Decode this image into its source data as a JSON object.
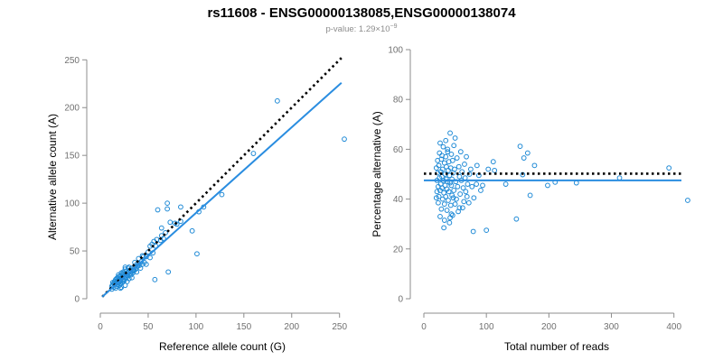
{
  "title": "rs11608 - ENSG00000138085,ENSG00000138074",
  "subtitle": {
    "prefix": "p-value: 1.29×10",
    "exponent": "−9"
  },
  "colors": {
    "points": "#1f8ad6",
    "fit_line": "#2a8de0",
    "reference_line": "#000000",
    "axis": "#8c8c8c"
  },
  "chart_data": [
    {
      "type": "scatter",
      "xlabel": "Reference allele count (G)",
      "ylabel": "Alternative allele count (A)",
      "xlim": [
        0,
        255
      ],
      "ylim": [
        0,
        255
      ],
      "xticks": [
        0,
        50,
        100,
        150,
        200,
        250
      ],
      "yticks": [
        0,
        50,
        100,
        150,
        200,
        250
      ],
      "grid": false,
      "fit_line": {
        "style": "solid",
        "from": [
          2,
          2
        ],
        "to": [
          252,
          226
        ]
      },
      "reference_line": {
        "style": "dotted",
        "from": [
          2,
          2
        ],
        "to": [
          252,
          252
        ]
      },
      "points": [
        [
          255,
          167
        ],
        [
          185,
          207
        ],
        [
          160,
          152
        ],
        [
          127,
          109
        ],
        [
          108,
          96
        ],
        [
          103,
          91
        ],
        [
          101,
          47
        ],
        [
          96,
          71
        ],
        [
          84,
          96
        ],
        [
          84,
          81
        ],
        [
          80,
          78
        ],
        [
          78,
          79
        ],
        [
          73,
          80
        ],
        [
          70,
          100
        ],
        [
          70,
          94
        ],
        [
          71,
          28
        ],
        [
          68,
          69
        ],
        [
          66,
          63
        ],
        [
          64,
          66
        ],
        [
          64,
          74
        ],
        [
          63,
          61
        ],
        [
          60,
          93
        ],
        [
          59,
          62
        ],
        [
          57,
          20
        ],
        [
          58,
          55
        ],
        [
          56,
          60
        ],
        [
          55,
          48
        ],
        [
          54,
          57
        ],
        [
          52,
          43
        ],
        [
          52,
          55
        ],
        [
          50,
          49
        ],
        [
          48,
          44
        ],
        [
          48,
          36
        ],
        [
          46,
          38
        ],
        [
          45,
          44
        ],
        [
          44,
          45
        ],
        [
          43,
          39
        ],
        [
          42,
          32
        ],
        [
          41,
          35
        ],
        [
          40,
          37
        ],
        [
          40,
          42
        ],
        [
          39,
          34
        ],
        [
          38,
          36
        ],
        [
          38,
          28
        ],
        [
          37,
          31
        ],
        [
          36,
          33
        ],
        [
          35,
          30
        ],
        [
          35,
          29
        ],
        [
          34,
          27
        ],
        [
          33,
          32
        ],
        [
          33,
          22
        ],
        [
          32,
          25
        ],
        [
          31,
          30
        ],
        [
          31,
          26
        ],
        [
          30,
          29
        ],
        [
          30,
          21
        ],
        [
          29,
          24
        ],
        [
          29,
          32
        ],
        [
          28,
          27
        ],
        [
          28,
          18
        ],
        [
          27,
          25
        ],
        [
          27,
          22
        ],
        [
          26,
          31
        ],
        [
          26,
          14
        ],
        [
          25,
          19
        ],
        [
          25,
          26
        ],
        [
          25,
          21
        ],
        [
          24,
          20
        ],
        [
          24,
          28
        ],
        [
          23,
          23
        ],
        [
          23,
          17
        ],
        [
          22,
          22
        ],
        [
          22,
          27
        ],
        [
          22,
          12
        ],
        [
          21,
          19
        ],
        [
          21,
          16
        ],
        [
          21,
          24
        ],
        [
          20,
          21
        ],
        [
          20,
          18
        ],
        [
          20,
          14
        ],
        [
          19,
          20
        ],
        [
          19,
          25
        ],
        [
          19,
          17
        ],
        [
          18,
          19
        ],
        [
          18,
          15
        ],
        [
          18,
          22
        ],
        [
          17,
          18
        ],
        [
          17,
          13
        ],
        [
          17,
          21
        ],
        [
          16,
          17
        ],
        [
          16,
          20
        ],
        [
          16,
          11
        ],
        [
          15,
          15
        ],
        [
          15,
          18
        ],
        [
          14,
          16
        ],
        [
          14,
          12
        ],
        [
          13,
          14
        ],
        [
          13,
          17
        ],
        [
          12,
          13
        ],
        [
          12,
          10
        ],
        [
          26,
          33
        ],
        [
          24,
          18
        ],
        [
          23,
          26
        ],
        [
          28,
          24
        ],
        [
          30,
          33
        ],
        [
          32,
          28
        ],
        [
          34,
          30
        ],
        [
          36,
          38
        ],
        [
          19,
          23
        ],
        [
          21,
          11
        ],
        [
          44,
          36
        ]
      ]
    },
    {
      "type": "scatter",
      "xlabel": "Total number of reads",
      "ylabel": "Percentage alternative (A)",
      "xlim": [
        0,
        425
      ],
      "ylim": [
        0,
        100
      ],
      "xticks": [
        0,
        100,
        200,
        300,
        400
      ],
      "yticks": [
        0,
        20,
        40,
        60,
        80,
        100
      ],
      "grid": false,
      "fit_line": {
        "style": "solid",
        "from": [
          0,
          47.5
        ],
        "to": [
          412,
          47.5
        ]
      },
      "reference_line": {
        "style": "dotted",
        "from": [
          0,
          50.2
        ],
        "to": [
          412,
          50.2
        ]
      },
      "points": [
        [
          422,
          39.5
        ],
        [
          392,
          52.5
        ],
        [
          313,
          48.5
        ],
        [
          244,
          46.5
        ],
        [
          210,
          46.8
        ],
        [
          198,
          45.5
        ],
        [
          177,
          53.5
        ],
        [
          170,
          41.5
        ],
        [
          166,
          58.5
        ],
        [
          160,
          56.5
        ],
        [
          158,
          49.8
        ],
        [
          154,
          61.2
        ],
        [
          148,
          32
        ],
        [
          131,
          46
        ],
        [
          113,
          51.5
        ],
        [
          111,
          55
        ],
        [
          103,
          52
        ],
        [
          100,
          27.5
        ],
        [
          94,
          45.5
        ],
        [
          91,
          43.5
        ],
        [
          88,
          49.5
        ],
        [
          85,
          53.5
        ],
        [
          84,
          46
        ],
        [
          80,
          40.5
        ],
        [
          79,
          27
        ],
        [
          77,
          45
        ],
        [
          75,
          52
        ],
        [
          73,
          50
        ],
        [
          72,
          38.5
        ],
        [
          70,
          46
        ],
        [
          69,
          41
        ],
        [
          68,
          57
        ],
        [
          67,
          43
        ],
        [
          66,
          48.5
        ],
        [
          65,
          54
        ],
        [
          64,
          39
        ],
        [
          63,
          44.5
        ],
        [
          62,
          36.5
        ],
        [
          61,
          51
        ],
        [
          60,
          47.5
        ],
        [
          59,
          59
        ],
        [
          58,
          42
        ],
        [
          57,
          49
        ],
        [
          56,
          53
        ],
        [
          55,
          35
        ],
        [
          54,
          45
        ],
        [
          53,
          56.5
        ],
        [
          52,
          40
        ],
        [
          51,
          47
        ],
        [
          50,
          64.5
        ],
        [
          50,
          38
        ],
        [
          49,
          52
        ],
        [
          48,
          43.5
        ],
        [
          48,
          61.5
        ],
        [
          47,
          50.5
        ],
        [
          46,
          33.5
        ],
        [
          46,
          55.5
        ],
        [
          45,
          41.5
        ],
        [
          45,
          48
        ],
        [
          44,
          45.5
        ],
        [
          44,
          58
        ],
        [
          43,
          37.5
        ],
        [
          43,
          52.5
        ],
        [
          42,
          46.5
        ],
        [
          42,
          66.5
        ],
        [
          41,
          30.5
        ],
        [
          41,
          49.5
        ],
        [
          40,
          43
        ],
        [
          40,
          55
        ],
        [
          39,
          39.5
        ],
        [
          39,
          51.5
        ],
        [
          38,
          47
        ],
        [
          38,
          60
        ],
        [
          37,
          35.5
        ],
        [
          37,
          44
        ],
        [
          36,
          53
        ],
        [
          36,
          48
        ],
        [
          35,
          41
        ],
        [
          35,
          57
        ],
        [
          34,
          45.5
        ],
        [
          34,
          50
        ],
        [
          33,
          38
        ],
        [
          33,
          54.5
        ],
        [
          32,
          42.5
        ],
        [
          32,
          28.5
        ],
        [
          31,
          47.5
        ],
        [
          31,
          61
        ],
        [
          30,
          40
        ],
        [
          30,
          52
        ],
        [
          29,
          44.5
        ],
        [
          29,
          49
        ],
        [
          28,
          36
        ],
        [
          28,
          56
        ],
        [
          27,
          46
        ],
        [
          27,
          51
        ],
        [
          26,
          33
        ],
        [
          26,
          43.5
        ],
        [
          25,
          58.5
        ],
        [
          25,
          48.5
        ],
        [
          24,
          41
        ],
        [
          24,
          53.5
        ],
        [
          23,
          45
        ],
        [
          23,
          38.5
        ],
        [
          22,
          50.5
        ],
        [
          22,
          55.5
        ],
        [
          21,
          43
        ],
        [
          21,
          47.5
        ],
        [
          20,
          52.5
        ],
        [
          20,
          40.5
        ],
        [
          26,
          62.5
        ],
        [
          33,
          31.5
        ],
        [
          44,
          34
        ],
        [
          57,
          36.5
        ],
        [
          38,
          59
        ],
        [
          29,
          57.5
        ],
        [
          47,
          40.5
        ],
        [
          35,
          63.5
        ],
        [
          42,
          32.5
        ]
      ]
    }
  ]
}
